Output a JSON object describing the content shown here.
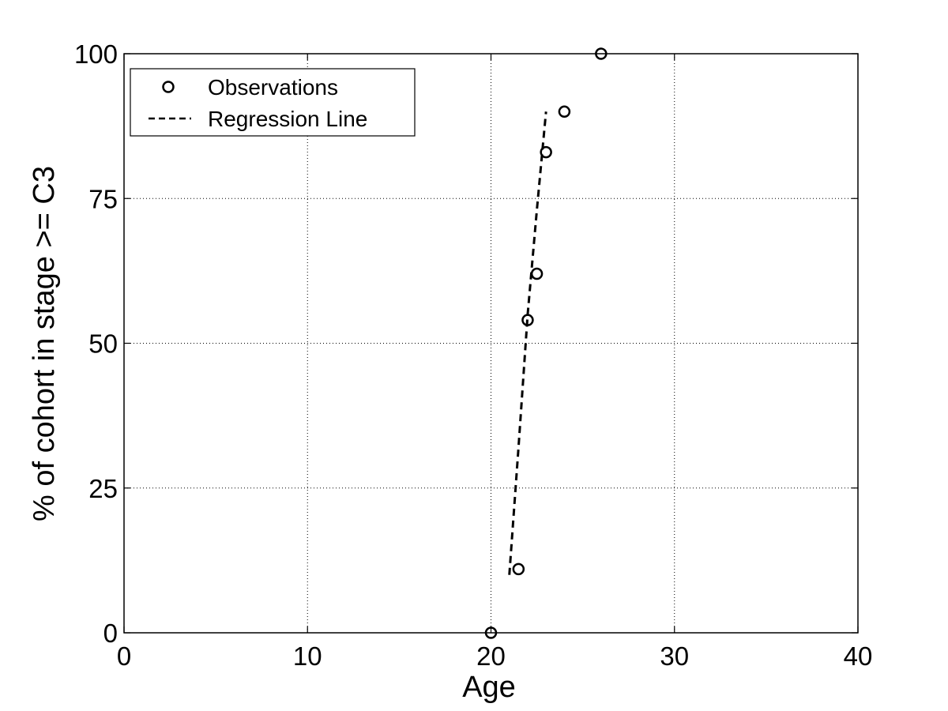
{
  "chart_data": {
    "type": "scatter",
    "xlabel": "Age",
    "ylabel": "% of cohort in stage >= C3",
    "xlim": [
      0,
      40
    ],
    "ylim": [
      0,
      100
    ],
    "xticks": [
      0,
      10,
      20,
      30,
      40
    ],
    "yticks": [
      0,
      25,
      50,
      75,
      100
    ],
    "grid": true,
    "legend_location": "top-left",
    "series": [
      {
        "name": "Observations",
        "kind": "scatter",
        "marker": "circle",
        "color": "#000000",
        "x": [
          20,
          21.5,
          22,
          22.5,
          23,
          24,
          26
        ],
        "y": [
          0,
          11,
          54,
          62,
          83,
          90,
          100
        ]
      },
      {
        "name": "Regression Line",
        "kind": "line",
        "line_style": "dashed",
        "color": "#000000",
        "x": [
          21,
          21.5,
          22,
          22.5,
          23
        ],
        "y": [
          10,
          32,
          55,
          73,
          90
        ]
      }
    ]
  }
}
